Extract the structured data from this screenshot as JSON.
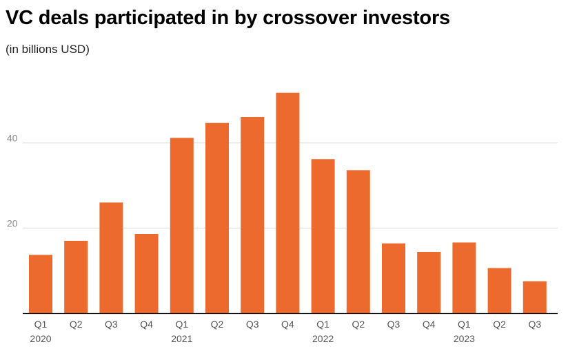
{
  "chart_data": {
    "type": "bar",
    "title": "VC deals participated in by crossover investors",
    "subtitle": "(in billions USD)",
    "xlabel": "",
    "ylabel": "",
    "categories": [
      "Q1 2020",
      "Q2 2020",
      "Q3 2020",
      "Q4 2020",
      "Q1 2021",
      "Q2 2021",
      "Q3 2021",
      "Q4 2021",
      "Q1 2022",
      "Q2 2022",
      "Q3 2022",
      "Q4 2022",
      "Q1 2023",
      "Q2 2023",
      "Q3 2023"
    ],
    "quarter_labels": [
      "Q1",
      "Q2",
      "Q3",
      "Q4",
      "Q1",
      "Q2",
      "Q3",
      "Q4",
      "Q1",
      "Q2",
      "Q3",
      "Q4",
      "Q1",
      "Q2",
      "Q3"
    ],
    "year_labels": [
      "2020",
      "",
      "",
      "",
      "2021",
      "",
      "",
      "",
      "2022",
      "",
      "",
      "",
      "2023",
      "",
      ""
    ],
    "values": [
      13.7,
      17.0,
      26.0,
      18.6,
      41.2,
      44.7,
      46.1,
      51.8,
      36.2,
      33.6,
      16.4,
      14.4,
      16.6,
      10.6,
      7.5
    ],
    "ylim": [
      0,
      55
    ],
    "yticks": [
      20,
      40
    ],
    "bar_color": "#ec6a2e",
    "grid": true,
    "legend": "none"
  }
}
